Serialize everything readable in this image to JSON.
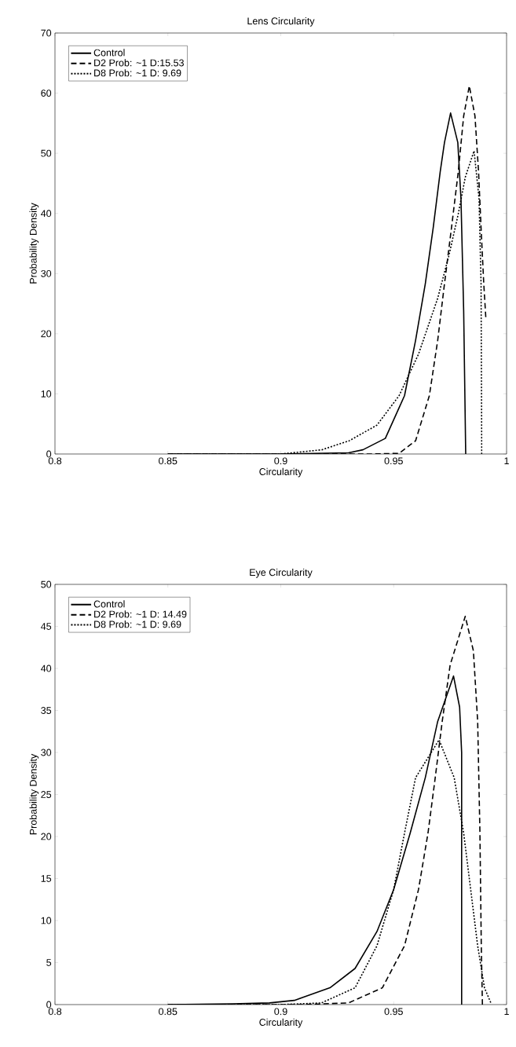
{
  "chart_data": [
    {
      "type": "line",
      "title": "Lens Circularity",
      "xlabel": "Circularity",
      "ylabel": "Probability Density",
      "xlim": [
        0.8,
        1
      ],
      "ylim": [
        0,
        70
      ],
      "xticks": [
        0.8,
        0.85,
        0.9,
        0.95,
        1
      ],
      "yticks": [
        0,
        10,
        20,
        30,
        40,
        50,
        60,
        70
      ],
      "legend": "top left",
      "grid": false,
      "series": [
        {
          "name": "Control",
          "color": "#000000",
          "line_style": "solid",
          "x": [
            0.85,
            0.9,
            0.93,
            0.9364,
            0.9463,
            0.9548,
            0.9597,
            0.964,
            0.9675,
            0.9706,
            0.9725,
            0.9752,
            0.9784,
            0.9798,
            0.981,
            0.9819
          ],
          "values": [
            0,
            0,
            0.2,
            0.7,
            2.6,
            9.7,
            18.9,
            28.3,
            37.6,
            46.9,
            51.8,
            56.7,
            51.8,
            42.5,
            23.8,
            0
          ]
        },
        {
          "name": "D2   Prob: ~1   D:15.53",
          "color": "#000000",
          "line_style": "dashed",
          "x": [
            0.85,
            0.94,
            0.9524,
            0.9597,
            0.9658,
            0.9695,
            0.9725,
            0.9756,
            0.9786,
            0.981,
            0.9835,
            0.986,
            0.9876,
            0.9887,
            0.9899,
            0.9908
          ],
          "values": [
            0,
            0,
            0.1,
            2.2,
            9.7,
            18.9,
            28.3,
            37.6,
            46.9,
            56.2,
            61.2,
            56.2,
            46.9,
            37.6,
            28.3,
            22.7
          ]
        },
        {
          "name": "D8   Prob: ~1   D: 9.69",
          "color": "#000000",
          "line_style": "dotted",
          "x": [
            0.85,
            0.9,
            0.9182,
            0.9303,
            0.9426,
            0.9524,
            0.961,
            0.9695,
            0.9744,
            0.9786,
            0.9817,
            0.9856,
            0.9878,
            0.9887,
            0.989
          ],
          "values": [
            0,
            0,
            0.7,
            2.2,
            4.8,
            9.7,
            16.6,
            25.9,
            32.9,
            39.9,
            46.0,
            50.4,
            42.5,
            28.3,
            0
          ]
        }
      ]
    },
    {
      "type": "line",
      "title": "Eye Circularity",
      "xlabel": "Circularity",
      "ylabel": "Probability Density",
      "xlim": [
        0.8,
        1
      ],
      "ylim": [
        0,
        50
      ],
      "xticks": [
        0.8,
        0.85,
        0.9,
        0.95,
        1
      ],
      "yticks": [
        0,
        5,
        10,
        15,
        20,
        25,
        30,
        35,
        40,
        45,
        50
      ],
      "legend": "top left",
      "grid": false,
      "series": [
        {
          "name": "Control",
          "color": "#000000",
          "line_style": "solid",
          "x": [
            0.85,
            0.8786,
            0.895,
            0.906,
            0.9218,
            0.9329,
            0.9426,
            0.95,
            0.9573,
            0.964,
            0.9695,
            0.9765,
            0.9792,
            0.9801,
            0.9801
          ],
          "values": [
            0,
            0.1,
            0.2,
            0.5,
            2.0,
            4.3,
            8.7,
            13.7,
            20.4,
            27.0,
            33.7,
            39.1,
            35.4,
            30.0,
            0
          ]
        },
        {
          "name": "D2   Prob: ~1   D: 14.49",
          "color": "#000000",
          "line_style": "dashed",
          "x": [
            0.85,
            0.91,
            0.93,
            0.945,
            0.9548,
            0.961,
            0.9652,
            0.9684,
            0.9715,
            0.975,
            0.9817,
            0.9853,
            0.9872,
            0.9882,
            0.9888,
            0.9893
          ],
          "values": [
            0,
            0,
            0.2,
            2.0,
            7.0,
            13.7,
            20.4,
            27.0,
            33.7,
            40.4,
            46.2,
            42.1,
            33.7,
            20.4,
            7.0,
            0
          ]
        },
        {
          "name": "D8   Prob: ~1   D: 9.69",
          "color": "#000000",
          "line_style": "dotted",
          "x": [
            0.85,
            0.9,
            0.918,
            0.9329,
            0.9426,
            0.95,
            0.9548,
            0.9597,
            0.9701,
            0.9768,
            0.981,
            0.9841,
            0.9872,
            0.9902,
            0.9932
          ],
          "values": [
            0,
            0,
            0.2,
            2.0,
            7.0,
            13.7,
            20.4,
            27.0,
            31.5,
            27.0,
            20.4,
            13.7,
            7.0,
            2.0,
            0.1
          ]
        }
      ]
    }
  ]
}
